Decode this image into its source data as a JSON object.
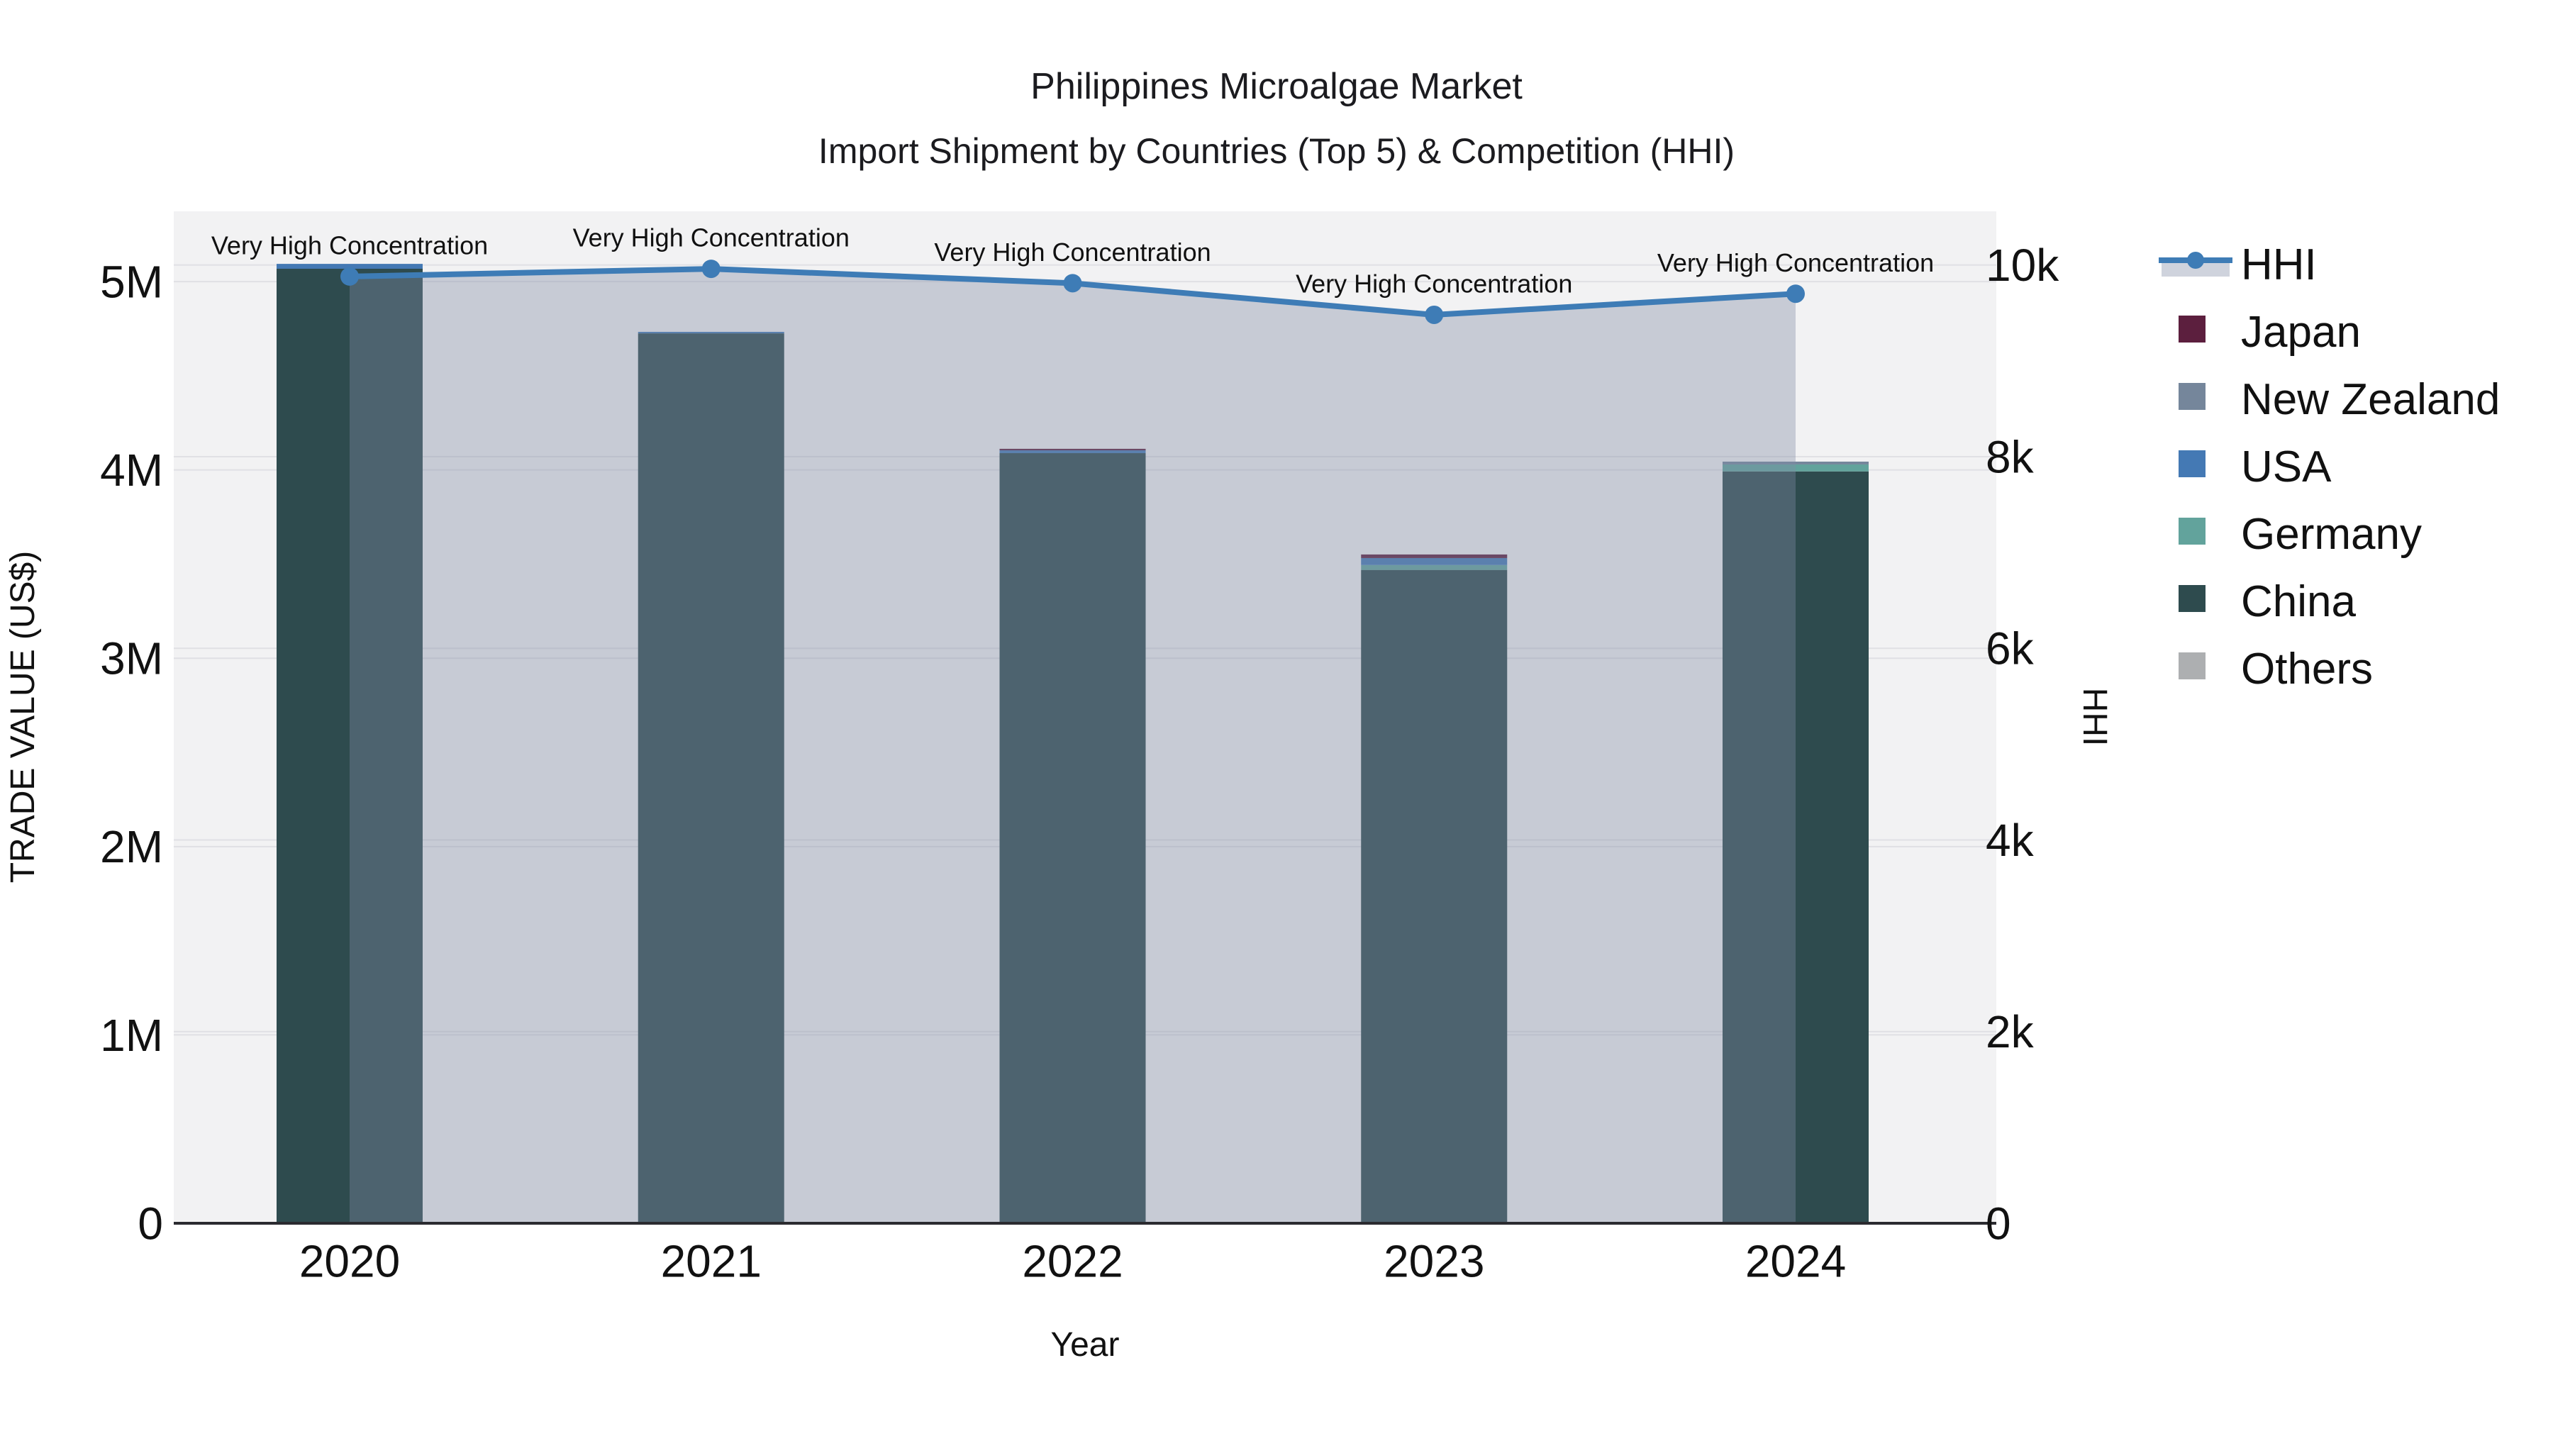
{
  "chart_data": {
    "type": "bar+line",
    "title": "Philippines Microalgae Market",
    "subtitle": "Import Shipment by Countries (Top 5) & Competition (HHI)",
    "xlabel": "Year",
    "ylabel_left": "TRADE VALUE (US$)",
    "ylabel_right": "HHI",
    "categories": [
      "2020",
      "2021",
      "2022",
      "2023",
      "2024"
    ],
    "bar_unit": "US$",
    "stack_order": [
      "China",
      "Germany",
      "USA",
      "New Zealand",
      "Japan",
      "Others"
    ],
    "series": [
      {
        "name": "Japan",
        "color": "#5C1F3E",
        "values": [
          0,
          0,
          8000,
          19000,
          0
        ]
      },
      {
        "name": "New Zealand",
        "color": "#75869B",
        "values": [
          0,
          0,
          0,
          0,
          15000
        ]
      },
      {
        "name": "USA",
        "color": "#4479B4",
        "values": [
          26000,
          8000,
          15000,
          37000,
          0
        ]
      },
      {
        "name": "Germany",
        "color": "#62A39C",
        "values": [
          0,
          0,
          0,
          26000,
          37000
        ]
      },
      {
        "name": "China",
        "color": "#2E4B4E",
        "values": [
          5068000,
          4725000,
          4089000,
          3469000,
          3992000
        ]
      },
      {
        "name": "Others",
        "color": "#ADAFB1",
        "values": [
          0,
          0,
          0,
          0,
          0
        ]
      }
    ],
    "line_series": {
      "name": "HHI",
      "color": "#3E7CB6",
      "fill_color": "rgba(128,140,166,0.38)",
      "values": [
        9880,
        9960,
        9810,
        9480,
        9700
      ]
    },
    "annotations": [
      "Very High Concentration",
      "Very High Concentration",
      "Very High Concentration",
      "Very High Concentration",
      "Very High Concentration"
    ],
    "left_axis": {
      "max_value": 5373000,
      "ticks": [
        {
          "label": "0",
          "value": 0
        },
        {
          "label": "1M",
          "value": 1000000
        },
        {
          "label": "2M",
          "value": 2000000
        },
        {
          "label": "3M",
          "value": 3000000
        },
        {
          "label": "4M",
          "value": 4000000
        },
        {
          "label": "5M",
          "value": 5000000
        }
      ]
    },
    "right_axis": {
      "max_value": 10560,
      "ticks": [
        {
          "label": "0",
          "value": 0
        },
        {
          "label": "2k",
          "value": 2000
        },
        {
          "label": "4k",
          "value": 4000
        },
        {
          "label": "6k",
          "value": 6000
        },
        {
          "label": "8k",
          "value": 8000
        },
        {
          "label": "10k",
          "value": 10000
        }
      ]
    },
    "legend": [
      {
        "name": "HHI",
        "type": "line",
        "color": "#3E7CB6"
      },
      {
        "name": "Japan",
        "type": "square",
        "color": "#5C1F3E"
      },
      {
        "name": "New Zealand",
        "type": "square",
        "color": "#75869B"
      },
      {
        "name": "USA",
        "type": "square",
        "color": "#4479B4"
      },
      {
        "name": "Germany",
        "type": "square",
        "color": "#62A39C"
      },
      {
        "name": "China",
        "type": "square",
        "color": "#2E4B4E"
      },
      {
        "name": "Others",
        "type": "square",
        "color": "#ADAFB1"
      }
    ],
    "colors": {
      "plot_background": "#F2F2F3",
      "gridline": "#E0E0E4",
      "axis_line": "#2B2B30",
      "text": "#111111"
    }
  }
}
